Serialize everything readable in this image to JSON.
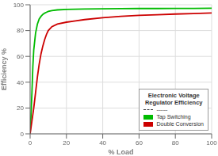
{
  "chart_data": {
    "type": "line",
    "title": "Electronic Voltage\nRegulator Efficiency",
    "xlabel": "% Load",
    "ylabel": "Efficiency %",
    "xlim": [
      0,
      100
    ],
    "ylim": [
      0,
      100
    ],
    "xticks": [
      0,
      20,
      40,
      60,
      80,
      100
    ],
    "yticks": [
      0,
      20,
      40,
      60,
      80,
      100
    ],
    "grid": true,
    "legend": "lower right",
    "annotations": [
      "------"
    ],
    "series": [
      {
        "name": "Tap Switching",
        "color": "#00bb00",
        "x": [
          0,
          0.5,
          1,
          1.5,
          2,
          3,
          4,
          5,
          6,
          7,
          8,
          9,
          10,
          12,
          15,
          20,
          30,
          40,
          50,
          60,
          70,
          80,
          90,
          100
        ],
        "values": [
          0,
          15,
          32,
          52,
          65,
          78,
          85,
          89,
          91,
          92.5,
          93.5,
          94.2,
          94.8,
          95.5,
          96.0,
          96.4,
          96.7,
          96.9,
          97.0,
          97.1,
          97.1,
          97.2,
          97.2,
          97.3
        ]
      },
      {
        "name": "Double Conversion",
        "color": "#cc0000",
        "x": [
          0,
          0.5,
          1,
          2,
          3,
          4,
          5,
          6,
          7,
          8,
          9,
          10,
          12,
          15,
          20,
          25,
          30,
          40,
          50,
          60,
          70,
          80,
          90,
          100
        ],
        "values": [
          0,
          5,
          10,
          20,
          32,
          44,
          54,
          62,
          68,
          73,
          77,
          80,
          83,
          85,
          86.5,
          87.5,
          88.5,
          90.0,
          91.0,
          91.8,
          92.3,
          92.8,
          93.2,
          93.6
        ]
      }
    ]
  }
}
